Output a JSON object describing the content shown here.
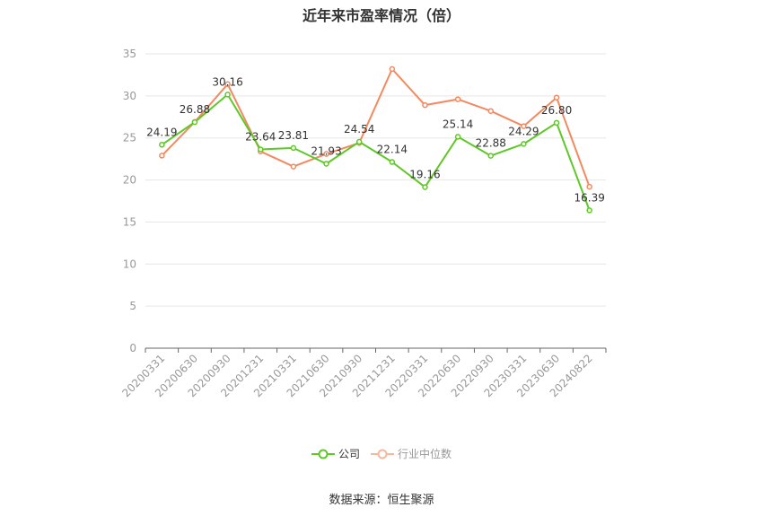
{
  "chart_data": {
    "type": "line",
    "title": "近年来市盈率情况（倍）",
    "categories": [
      "20200331",
      "20200630",
      "20200930",
      "20201231",
      "20210331",
      "20210630",
      "20210930",
      "20211231",
      "20220331",
      "20220630",
      "20220930",
      "20230331",
      "20230630",
      "20240822"
    ],
    "series": [
      {
        "name": "公司",
        "color": "#5ec926",
        "values": [
          24.19,
          26.88,
          30.16,
          23.64,
          23.81,
          21.93,
          24.54,
          22.14,
          19.16,
          25.14,
          22.88,
          24.29,
          26.8,
          16.39
        ],
        "labels": [
          "24.19",
          "26.88",
          "30.16",
          "23.64",
          "23.81",
          "21.93",
          "24.54",
          "22.14",
          "19.16",
          "25.14",
          "22.88",
          "24.29",
          "26.80",
          "16.39"
        ]
      },
      {
        "name": "行业中位数",
        "color": "#f4895f",
        "values": [
          22.9,
          26.9,
          31.4,
          23.4,
          21.6,
          23.1,
          24.4,
          33.2,
          28.9,
          29.6,
          28.2,
          26.4,
          29.8,
          19.2
        ]
      }
    ],
    "ylim": [
      0,
      35
    ],
    "yticks": [
      "0",
      "5",
      "10",
      "15",
      "20",
      "25",
      "30",
      "35"
    ],
    "grid": true,
    "legend_position": "bottom"
  },
  "legend": {
    "company": "公司",
    "industry": "行业中位数"
  },
  "source_text": "数据来源：恒生聚源"
}
